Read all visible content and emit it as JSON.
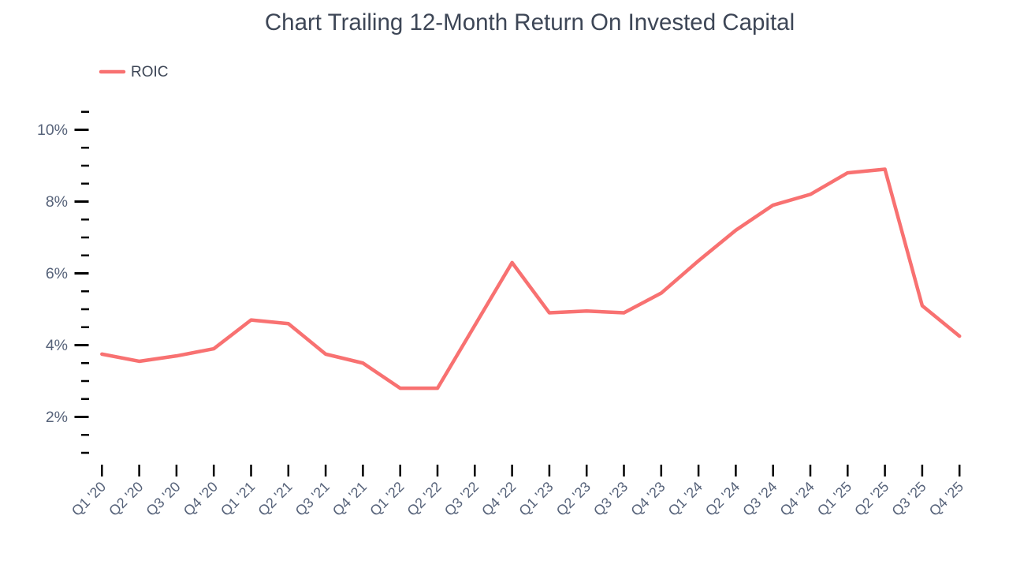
{
  "page": {
    "background": "#ffffff"
  },
  "chart_data": {
    "type": "line",
    "title": "Chart Trailing 12-Month Return On Invested Capital",
    "categories": [
      "Q1 '20",
      "Q2 '20",
      "Q3 '20",
      "Q4 '20",
      "Q1 '21",
      "Q2 '21",
      "Q3 '21",
      "Q4 '21",
      "Q1 '22",
      "Q2 '22",
      "Q3 '22",
      "Q4 '22",
      "Q1 '23",
      "Q2 '23",
      "Q3 '23",
      "Q4 '23",
      "Q1 '24",
      "Q2 '24",
      "Q3 '24",
      "Q4 '24",
      "Q1 '25",
      "Q2 '25",
      "Q3 '25",
      "Q4 '25"
    ],
    "series": [
      {
        "name": "ROIC",
        "color": "#f87171",
        "values": [
          3.75,
          3.55,
          3.7,
          3.9,
          4.7,
          4.6,
          3.75,
          3.5,
          2.8,
          2.8,
          4.55,
          6.3,
          4.9,
          4.95,
          4.9,
          5.45,
          6.35,
          7.2,
          7.9,
          8.2,
          8.8,
          8.9,
          5.1,
          4.25
        ]
      }
    ],
    "xlabel": "",
    "ylabel": "",
    "ylim": [
      1,
      10.5
    ],
    "y_major_ticks": [
      2,
      4,
      6,
      8,
      10
    ],
    "y_tick_labels": [
      "2%",
      "4%",
      "6%",
      "8%",
      "10%"
    ],
    "y_minor_step": 0.5,
    "x_tick_rotation": -45,
    "grid": false,
    "legend_position": "top-left",
    "colors": {
      "line": "#f87171",
      "tick": "#000000",
      "axis_label": "#57637a",
      "title": "#3d4656"
    }
  }
}
